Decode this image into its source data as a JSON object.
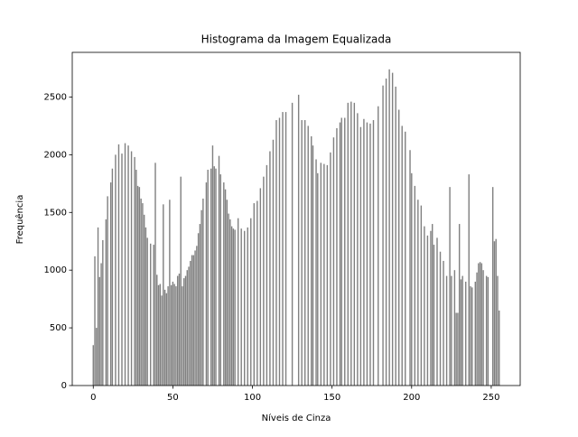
{
  "chart_data": {
    "type": "bar",
    "title": "Histograma da Imagem Equalizada",
    "xlabel": "Níveis de Cinza",
    "ylabel": "Frequência",
    "color": "#808080",
    "bar_width": 0.8,
    "grid": false,
    "x": [
      0,
      1,
      2,
      3,
      4,
      5,
      6,
      8,
      9,
      11,
      12,
      14,
      16,
      18,
      20,
      22,
      24,
      26,
      27,
      28,
      29,
      30,
      31,
      32,
      33,
      34,
      36,
      38,
      39,
      40,
      41,
      42,
      43,
      44,
      45,
      46,
      47,
      48,
      49,
      50,
      51,
      52,
      53,
      54,
      55,
      56,
      57,
      58,
      59,
      60,
      61,
      62,
      63,
      64,
      65,
      66,
      67,
      68,
      69,
      71,
      72,
      74,
      75,
      76,
      77,
      79,
      80,
      82,
      83,
      84,
      85,
      86,
      87,
      88,
      89,
      91,
      93,
      95,
      97,
      99,
      101,
      103,
      105,
      107,
      109,
      111,
      113,
      115,
      117,
      119,
      121,
      125,
      129,
      131,
      133,
      135,
      137,
      138,
      140,
      141,
      143,
      145,
      147,
      149,
      151,
      153,
      155,
      156,
      158,
      160,
      162,
      164,
      166,
      168,
      170,
      172,
      174,
      176,
      179,
      182,
      184,
      186,
      188,
      190,
      192,
      194,
      196,
      199,
      200,
      202,
      204,
      206,
      208,
      210,
      212,
      213,
      214,
      216,
      218,
      220,
      222,
      224,
      225,
      227,
      228,
      229,
      230,
      231,
      232,
      234,
      236,
      237,
      238,
      240,
      241,
      242,
      243,
      244,
      245,
      247,
      248,
      251,
      252,
      253,
      254,
      255
    ],
    "values": [
      350,
      1120,
      500,
      1370,
      940,
      1060,
      1260,
      1440,
      1640,
      1760,
      1880,
      2000,
      2090,
      2010,
      2100,
      2080,
      2030,
      1980,
      1870,
      1730,
      1720,
      1620,
      1580,
      1480,
      1370,
      1280,
      1230,
      1220,
      1930,
      960,
      870,
      880,
      780,
      1570,
      830,
      800,
      860,
      1610,
      870,
      900,
      880,
      860,
      950,
      970,
      1810,
      860,
      930,
      950,
      1000,
      1030,
      1080,
      1130,
      1130,
      1170,
      1210,
      1320,
      1400,
      1520,
      1620,
      1760,
      1870,
      1880,
      2080,
      1900,
      1880,
      1990,
      1830,
      1760,
      1700,
      1610,
      1490,
      1440,
      1380,
      1360,
      1350,
      1450,
      1360,
      1340,
      1370,
      1450,
      1580,
      1600,
      1710,
      1810,
      1910,
      2030,
      2130,
      2300,
      2320,
      2370,
      2370,
      2450,
      2520,
      2300,
      2300,
      2250,
      2160,
      2080,
      1960,
      1840,
      1930,
      1920,
      1910,
      2020,
      2150,
      2230,
      2280,
      2320,
      2320,
      2450,
      2460,
      2450,
      2360,
      2240,
      2310,
      2280,
      2270,
      2300,
      2420,
      2600,
      2660,
      2740,
      2710,
      2590,
      2390,
      2250,
      2200,
      2040,
      1840,
      1730,
      1610,
      1560,
      1380,
      1300,
      1340,
      1400,
      1220,
      1280,
      1160,
      1080,
      950,
      1720,
      950,
      1000,
      630,
      630,
      1400,
      920,
      950,
      900,
      1830,
      860,
      850,
      900,
      980,
      1060,
      1070,
      1060,
      1000,
      950,
      940,
      1720,
      1250,
      1270,
      950,
      650
    ],
    "xlim": [
      -13.2,
      268.2
    ],
    "ylim": [
      0,
      2887
    ],
    "xticks": [
      0,
      50,
      100,
      150,
      200,
      250
    ],
    "yticks": [
      0,
      500,
      1000,
      1500,
      2000,
      2500
    ]
  }
}
